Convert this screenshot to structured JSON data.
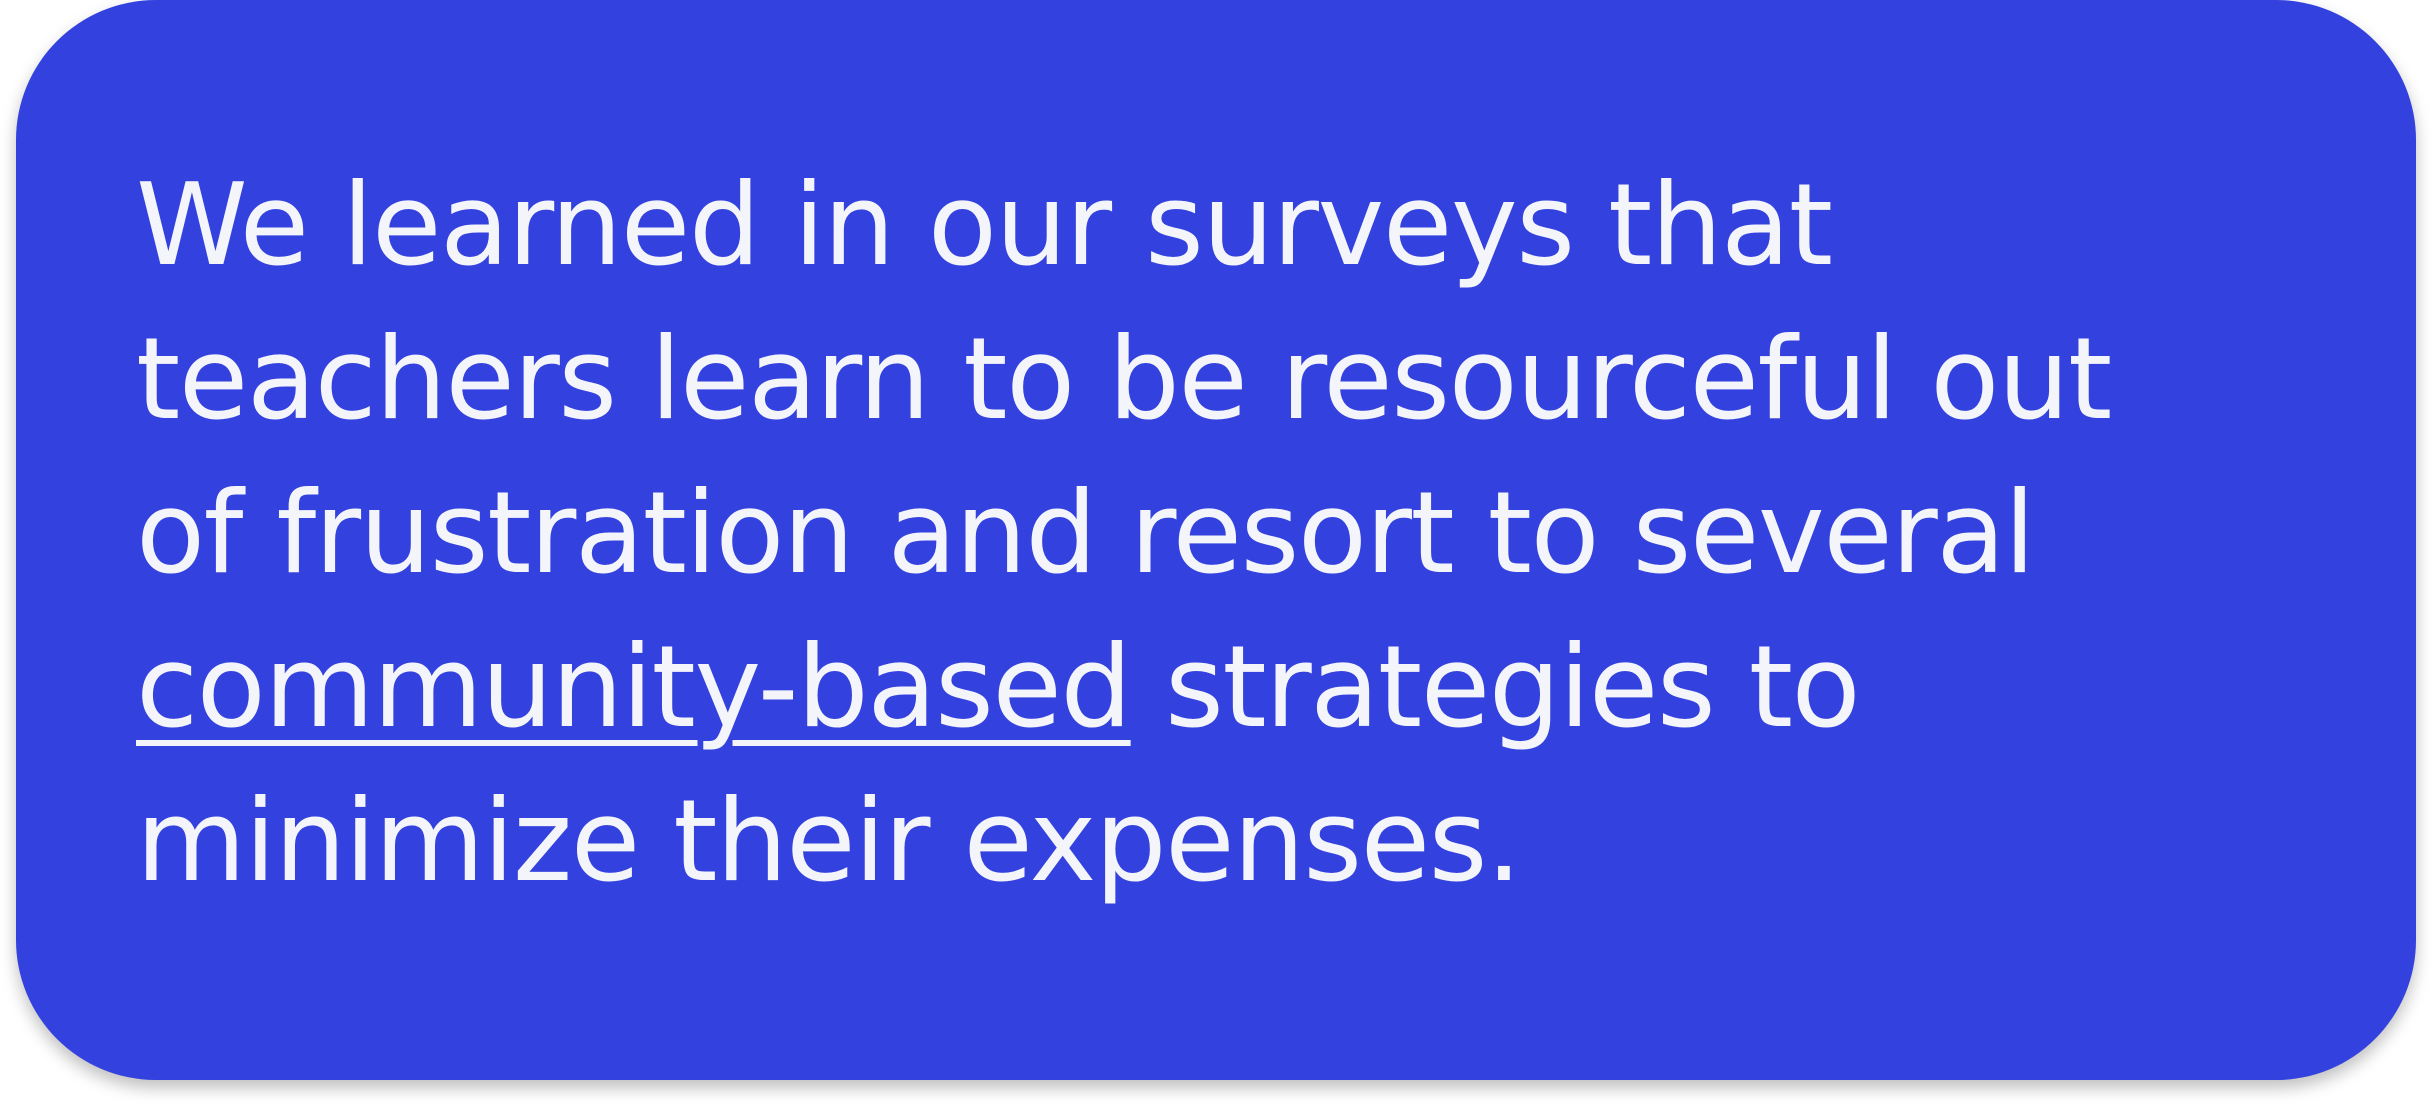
{
  "card": {
    "background_color": "#3341de",
    "text_color": "#f4f4fb"
  },
  "quote": {
    "line1": "We learned in our surveys that",
    "line2": "teachers learn to be resourceful out",
    "line3": "of frustration and resort to several",
    "line4_link": "community-based",
    "line4_rest": " strategies to",
    "line5": "minimize their expenses."
  }
}
